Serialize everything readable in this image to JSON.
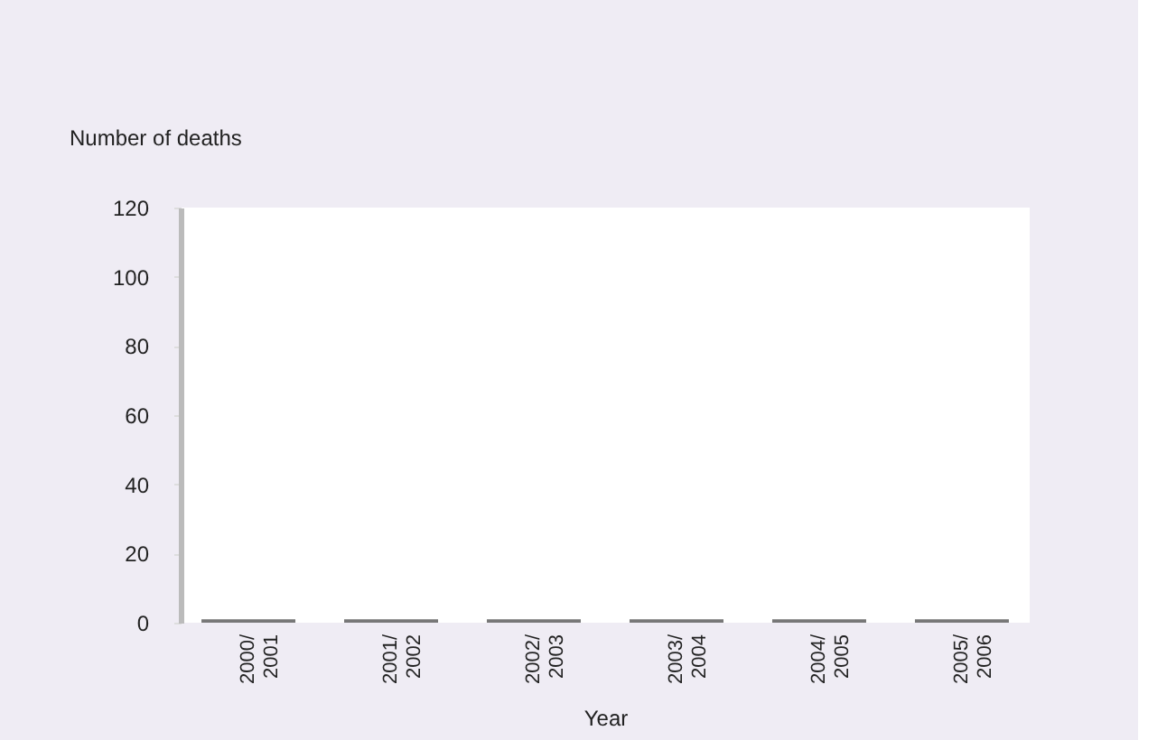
{
  "chart_data": {
    "type": "bar",
    "ylabel": "Number of deaths",
    "xlabel": "Year",
    "categories": [
      "2000/2001",
      "2001/2002",
      "2002/2003",
      "2003/2004",
      "2004/2005",
      "2005/2006"
    ],
    "values": [
      1,
      1,
      1,
      1,
      1,
      1
    ],
    "color": "#777777",
    "ylim": [
      0,
      120
    ],
    "yticks": [
      0,
      20,
      40,
      60,
      80,
      100,
      120
    ]
  }
}
